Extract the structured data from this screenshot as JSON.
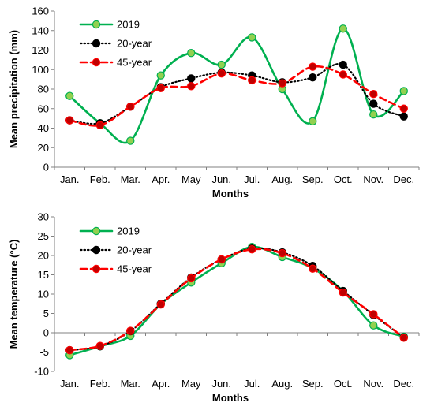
{
  "chart_data": [
    {
      "type": "line",
      "title": "",
      "xlabel": "Months",
      "ylabel": "Mean precipitation (mm)",
      "categories": [
        "Jan.",
        "Feb.",
        "Mar.",
        "Apr.",
        "May",
        "Jun.",
        "Jul.",
        "Aug.",
        "Sep.",
        "Oct.",
        "Nov.",
        "Dec."
      ],
      "ylim": [
        0,
        160
      ],
      "yticks": [
        0,
        20,
        40,
        60,
        80,
        100,
        120,
        140,
        160
      ],
      "grid": false,
      "legend_position": "top-left",
      "series": [
        {
          "name": "2019",
          "values": [
            73,
            45,
            27,
            94,
            117,
            105,
            133,
            80,
            47,
            142,
            54,
            78
          ],
          "color": "#00b050",
          "marker_fill": "#92d050",
          "line_style": "solid",
          "smooth": true
        },
        {
          "name": "20-year",
          "values": [
            48,
            45,
            62,
            82,
            91,
            97,
            94,
            87,
            92,
            105,
            65,
            52
          ],
          "color": "#000000",
          "marker_fill": "#000000",
          "line_style": "dotted",
          "smooth": true
        },
        {
          "name": "45-year",
          "values": [
            48,
            43,
            62,
            81,
            83,
            96,
            89,
            86,
            103,
            95,
            75,
            60
          ],
          "color": "#ff0000",
          "marker_fill": "#c00000",
          "line_style": "dashed",
          "smooth": true
        }
      ]
    },
    {
      "type": "line",
      "title": "",
      "xlabel": "Months",
      "ylabel": "Mean temperature (°C)",
      "categories": [
        "Jan.",
        "Feb.",
        "Mar.",
        "Apr.",
        "May",
        "Jun.",
        "Jul.",
        "Aug.",
        "Sep.",
        "Oct.",
        "Nov.",
        "Dec."
      ],
      "ylim": [
        -10,
        30
      ],
      "yticks": [
        -10,
        -5,
        0,
        5,
        10,
        15,
        20,
        25,
        30
      ],
      "grid": false,
      "legend_position": "top-left",
      "series": [
        {
          "name": "2019",
          "values": [
            -5.8,
            -3.5,
            -0.8,
            7.4,
            13.0,
            18.0,
            22.2,
            19.6,
            16.7,
            10.8,
            1.9,
            -1.0
          ],
          "color": "#00b050",
          "marker_fill": "#92d050",
          "line_style": "solid",
          "smooth": true
        },
        {
          "name": "20-year",
          "values": [
            -4.5,
            -3.5,
            0.4,
            7.5,
            14.3,
            19.0,
            21.8,
            20.8,
            17.3,
            10.8,
            4.6,
            -1.2
          ],
          "color": "#000000",
          "marker_fill": "#000000",
          "line_style": "dotted",
          "smooth": true
        },
        {
          "name": "45-year",
          "values": [
            -4.5,
            -3.4,
            0.5,
            7.3,
            14.1,
            19.0,
            21.6,
            20.6,
            16.6,
            10.4,
            4.8,
            -1.3
          ],
          "color": "#ff0000",
          "marker_fill": "#c00000",
          "line_style": "dashed",
          "smooth": true
        }
      ]
    }
  ]
}
